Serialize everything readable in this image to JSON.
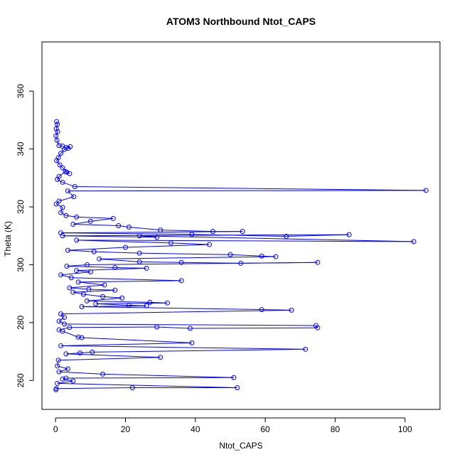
{
  "chart_data": {
    "type": "scatter",
    "style": "points-connected-by-lines",
    "title": "ATOM3 Northbound Ntot_CAPS",
    "xlabel": "Ntot_CAPS",
    "ylabel": "Theta (K)",
    "xlim": [
      -3.9,
      110.0
    ],
    "ylim": [
      250.0,
      377.0
    ],
    "xticks": [
      0,
      20,
      40,
      60,
      80,
      100
    ],
    "yticks": [
      260,
      280,
      300,
      320,
      340,
      360
    ],
    "grid": false,
    "color": "#0000ff",
    "series": [
      {
        "points": [
          [
            0.3,
            349.5
          ],
          [
            0.5,
            348.5
          ],
          [
            0.2,
            347.0
          ],
          [
            0.6,
            346.0
          ],
          [
            0.1,
            344.5
          ],
          [
            0.4,
            343.0
          ],
          [
            1.0,
            341.2
          ],
          [
            2.0,
            341.0
          ],
          [
            3.0,
            340.5
          ],
          [
            4.2,
            340.8
          ],
          [
            3.6,
            340.2
          ],
          [
            2.5,
            339.8
          ],
          [
            1.5,
            338.5
          ],
          [
            0.8,
            337.0
          ],
          [
            0.3,
            336.0
          ],
          [
            1.2,
            334.5
          ],
          [
            2.0,
            333.5
          ],
          [
            3.2,
            332.0
          ],
          [
            4.0,
            331.5
          ],
          [
            2.8,
            332.2
          ],
          [
            1.0,
            330.5
          ],
          [
            0.5,
            329.5
          ],
          [
            2.0,
            328.5
          ],
          [
            5.5,
            327.0
          ],
          [
            106.0,
            325.7
          ],
          [
            3.5,
            325.5
          ],
          [
            5.2,
            323.5
          ],
          [
            1.0,
            322.0
          ],
          [
            0.2,
            321.0
          ],
          [
            2.0,
            319.8
          ],
          [
            1.5,
            318.0
          ],
          [
            3.0,
            317.0
          ],
          [
            6.0,
            316.5
          ],
          [
            16.5,
            316.0
          ],
          [
            10.0,
            315.0
          ],
          [
            5.0,
            314.0
          ],
          [
            18.0,
            313.5
          ],
          [
            21.0,
            313.0
          ],
          [
            30.0,
            312.0
          ],
          [
            45.0,
            311.5
          ],
          [
            53.5,
            311.5
          ],
          [
            1.5,
            311.0
          ],
          [
            39.0,
            310.5
          ],
          [
            66.0,
            309.8
          ],
          [
            84.0,
            310.4
          ],
          [
            2.0,
            310.0
          ],
          [
            29.0,
            309.5
          ],
          [
            24.0,
            310.0
          ],
          [
            102.5,
            308.0
          ],
          [
            6.0,
            308.5
          ],
          [
            33.0,
            307.5
          ],
          [
            44.0,
            307.0
          ],
          [
            20.0,
            306.0
          ],
          [
            3.5,
            305.0
          ],
          [
            11.0,
            304.5
          ],
          [
            24.0,
            304.0
          ],
          [
            50.0,
            303.5
          ],
          [
            59.0,
            303.0
          ],
          [
            63.0,
            302.8
          ],
          [
            12.5,
            302.0
          ],
          [
            24.0,
            301.0
          ],
          [
            36.0,
            300.8
          ],
          [
            53.0,
            300.5
          ],
          [
            75.0,
            300.8
          ],
          [
            9.0,
            300.0
          ],
          [
            3.2,
            299.5
          ],
          [
            17.0,
            299.0
          ],
          [
            26.0,
            298.8
          ],
          [
            6.0,
            298.0
          ],
          [
            10.0,
            297.5
          ],
          [
            1.5,
            296.5
          ],
          [
            4.5,
            295.5
          ],
          [
            36.0,
            294.5
          ],
          [
            6.5,
            294.0
          ],
          [
            14.0,
            293.0
          ],
          [
            4.0,
            292.0
          ],
          [
            9.5,
            291.5
          ],
          [
            17.0,
            291.2
          ],
          [
            5.0,
            290.5
          ],
          [
            8.0,
            289.8
          ],
          [
            13.5,
            289.0
          ],
          [
            19.0,
            288.5
          ],
          [
            9.0,
            287.5
          ],
          [
            27.0,
            287.0
          ],
          [
            32.0,
            286.8
          ],
          [
            11.5,
            286.5
          ],
          [
            21.0,
            286.0
          ],
          [
            26.0,
            285.8
          ],
          [
            7.5,
            285.5
          ],
          [
            59.0,
            284.5
          ],
          [
            67.5,
            284.3
          ],
          [
            1.5,
            283.0
          ],
          [
            2.5,
            281.8
          ],
          [
            1.0,
            280.5
          ],
          [
            2.5,
            279.5
          ],
          [
            74.5,
            279.0
          ],
          [
            75.0,
            278.2
          ],
          [
            38.5,
            278.0
          ],
          [
            29.0,
            278.5
          ],
          [
            4.0,
            278.3
          ],
          [
            1.0,
            277.5
          ],
          [
            2.0,
            277.0
          ],
          [
            6.5,
            275.0
          ],
          [
            7.5,
            274.8
          ],
          [
            39.0,
            273.0
          ],
          [
            1.5,
            272.0
          ],
          [
            71.5,
            270.8
          ],
          [
            10.5,
            269.8
          ],
          [
            7.0,
            269.5
          ],
          [
            3.0,
            269.2
          ],
          [
            30.0,
            268.0
          ],
          [
            0.8,
            267.0
          ],
          [
            0.5,
            265.0
          ],
          [
            3.5,
            264.0
          ],
          [
            1.0,
            263.0
          ],
          [
            13.5,
            262.2
          ],
          [
            51.0,
            261.0
          ],
          [
            3.0,
            260.8
          ],
          [
            2.0,
            260.5
          ],
          [
            5.0,
            259.8
          ],
          [
            0.5,
            259.0
          ],
          [
            52.0,
            257.5
          ],
          [
            22.0,
            257.5
          ],
          [
            0.2,
            257.2
          ],
          [
            0.1,
            256.8
          ]
        ]
      }
    ]
  }
}
